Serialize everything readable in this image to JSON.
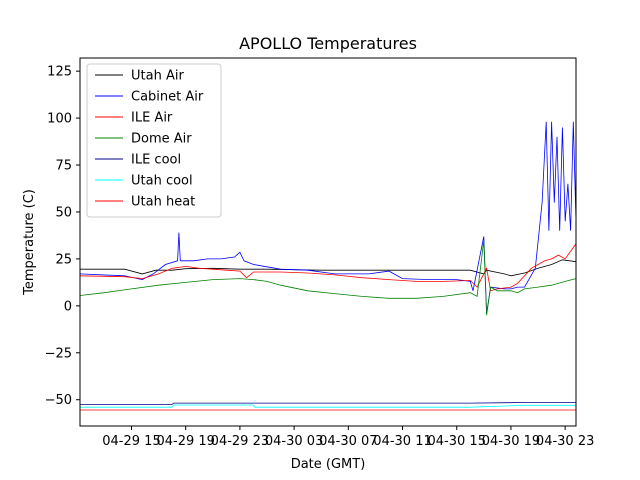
{
  "chart_data": {
    "type": "line",
    "title": "APOLLO Temperatures",
    "xlabel": "Date (GMT)",
    "ylabel": "Temperature (C)",
    "x_ticks": [
      "04-29 15",
      "04-29 19",
      "04-29 23",
      "04-30 03",
      "04-30 07",
      "04-30 11",
      "04-30 15",
      "04-30 19",
      "04-30 23"
    ],
    "x_tick_hours": [
      15,
      19,
      23,
      27,
      31,
      35,
      39,
      43,
      47
    ],
    "xlim_hours": [
      11.2,
      47.8
    ],
    "y_ticks": [
      -50,
      -25,
      0,
      25,
      50,
      75,
      100,
      125
    ],
    "ylim": [
      -64,
      132
    ],
    "grid": false,
    "legend_position": "upper-left",
    "series": [
      {
        "name": "Utah Air",
        "color": "#000000",
        "points": [
          [
            11.2,
            19.5
          ],
          [
            14.5,
            19.5
          ],
          [
            15.8,
            17
          ],
          [
            16.8,
            19
          ],
          [
            18,
            19
          ],
          [
            19,
            19.8
          ],
          [
            21,
            20
          ],
          [
            23,
            19.5
          ],
          [
            25,
            19.5
          ],
          [
            29,
            19
          ],
          [
            33,
            19
          ],
          [
            37,
            19
          ],
          [
            40,
            19
          ],
          [
            41,
            17
          ],
          [
            41.2,
            19
          ],
          [
            42.5,
            17
          ],
          [
            43,
            16
          ],
          [
            44,
            17.5
          ],
          [
            45,
            20
          ],
          [
            46,
            22
          ],
          [
            46.8,
            24.5
          ],
          [
            47.8,
            23.5
          ]
        ]
      },
      {
        "name": "Cabinet Air",
        "color": "#0000ff",
        "points": [
          [
            11.2,
            17
          ],
          [
            14.5,
            16
          ],
          [
            15.8,
            14
          ],
          [
            16.6,
            17
          ],
          [
            17.5,
            22
          ],
          [
            18.4,
            24
          ],
          [
            18.5,
            39
          ],
          [
            18.6,
            24
          ],
          [
            19.6,
            24
          ],
          [
            20.6,
            25
          ],
          [
            21.6,
            25
          ],
          [
            22.6,
            26
          ],
          [
            23,
            28.5
          ],
          [
            23.3,
            24
          ],
          [
            24,
            22
          ],
          [
            26,
            19.5
          ],
          [
            28,
            19
          ],
          [
            30,
            17
          ],
          [
            31,
            17
          ],
          [
            32.5,
            17
          ],
          [
            34,
            18.5
          ],
          [
            35,
            14.5
          ],
          [
            37,
            14
          ],
          [
            39,
            14
          ],
          [
            40,
            13
          ],
          [
            40.2,
            8
          ],
          [
            41,
            37
          ],
          [
            41.2,
            -4
          ],
          [
            41.5,
            10
          ],
          [
            42.5,
            9
          ],
          [
            43,
            9
          ],
          [
            43.5,
            10
          ],
          [
            44,
            10
          ],
          [
            44.8,
            20
          ],
          [
            45.3,
            55
          ],
          [
            45.6,
            98
          ],
          [
            45.8,
            40
          ],
          [
            46,
            98
          ],
          [
            46.2,
            55
          ],
          [
            46.4,
            90
          ],
          [
            46.6,
            40
          ],
          [
            46.8,
            95
          ],
          [
            47,
            45
          ],
          [
            47.2,
            65
          ],
          [
            47.4,
            40
          ],
          [
            47.6,
            98
          ],
          [
            47.8,
            45
          ]
        ]
      },
      {
        "name": "ILE Air",
        "color": "#ff0000",
        "points": [
          [
            11.2,
            16
          ],
          [
            14.5,
            15.5
          ],
          [
            15.8,
            14.5
          ],
          [
            17,
            17
          ],
          [
            18,
            20
          ],
          [
            19,
            21
          ],
          [
            20,
            20
          ],
          [
            21,
            19.5
          ],
          [
            22,
            19
          ],
          [
            23,
            18.5
          ],
          [
            23.5,
            15
          ],
          [
            24,
            18
          ],
          [
            26,
            18
          ],
          [
            28,
            17.5
          ],
          [
            30,
            16.5
          ],
          [
            32,
            15
          ],
          [
            34,
            14
          ],
          [
            36,
            13
          ],
          [
            38,
            13
          ],
          [
            40,
            13.5
          ],
          [
            40.5,
            10
          ],
          [
            41.2,
            20
          ],
          [
            41.5,
            8
          ],
          [
            42,
            9
          ],
          [
            43,
            10
          ],
          [
            43.5,
            12
          ],
          [
            44,
            16
          ],
          [
            44.5,
            20
          ],
          [
            45,
            22
          ],
          [
            45.5,
            24
          ],
          [
            46,
            25
          ],
          [
            46.5,
            27
          ],
          [
            47,
            25
          ],
          [
            47.5,
            30
          ],
          [
            47.8,
            33
          ]
        ]
      },
      {
        "name": "Dome Air",
        "color": "#008000",
        "points": [
          [
            11.2,
            5.5
          ],
          [
            13,
            7
          ],
          [
            15,
            9
          ],
          [
            17,
            11
          ],
          [
            19,
            12.5
          ],
          [
            21,
            14
          ],
          [
            23,
            14.5
          ],
          [
            24,
            14
          ],
          [
            25,
            13
          ],
          [
            26,
            11
          ],
          [
            28,
            8
          ],
          [
            30,
            6.5
          ],
          [
            32,
            5
          ],
          [
            34,
            4
          ],
          [
            36,
            4
          ],
          [
            38,
            5
          ],
          [
            40,
            7
          ],
          [
            40.5,
            5
          ],
          [
            41,
            35
          ],
          [
            41.2,
            -5
          ],
          [
            41.5,
            10
          ],
          [
            42,
            8
          ],
          [
            43,
            8
          ],
          [
            43.5,
            7
          ],
          [
            44,
            9
          ],
          [
            45,
            10
          ],
          [
            46,
            11
          ],
          [
            47,
            13
          ],
          [
            47.8,
            14.5
          ]
        ]
      },
      {
        "name": "ILE cool",
        "color": "#00008b",
        "points": [
          [
            11.2,
            -52.5
          ],
          [
            18,
            -52.5
          ],
          [
            18.1,
            -51.8
          ],
          [
            30,
            -51.8
          ],
          [
            40,
            -51.8
          ],
          [
            44,
            -51.5
          ],
          [
            47.8,
            -51.5
          ]
        ]
      },
      {
        "name": "Utah cool",
        "color": "#00ffff",
        "points": [
          [
            11.2,
            -54
          ],
          [
            18,
            -54
          ],
          [
            18.1,
            -52.8
          ],
          [
            24,
            -52.8
          ],
          [
            24.1,
            -54
          ],
          [
            40,
            -54
          ],
          [
            44,
            -53
          ],
          [
            47.8,
            -53
          ]
        ]
      },
      {
        "name": "Utah heat",
        "color": "#ff0000",
        "points": [
          [
            11.2,
            -55.5
          ],
          [
            20,
            -55.5
          ],
          [
            47.8,
            -55.5
          ]
        ]
      }
    ]
  }
}
